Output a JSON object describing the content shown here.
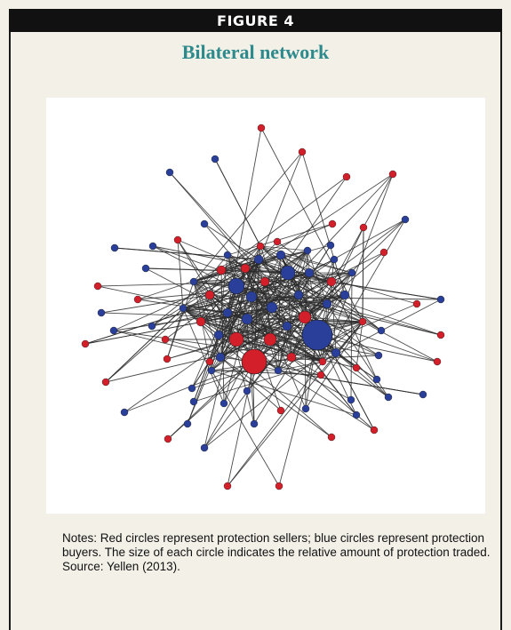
{
  "figure": {
    "label": "FIGURE 4",
    "title": "Bilateral network",
    "notes": "Notes: Red circles represent protection sellers; blue circles represent protection buyers. The size of each circle indicates the relative amount of protection traded.",
    "source": "Source: Yellen (2013)."
  },
  "legend_semantics": {
    "seller_color": "#d21f2a",
    "buyer_color": "#2a3f9a",
    "seller_label": "protection sellers",
    "buyer_label": "protection buyers"
  }
}
